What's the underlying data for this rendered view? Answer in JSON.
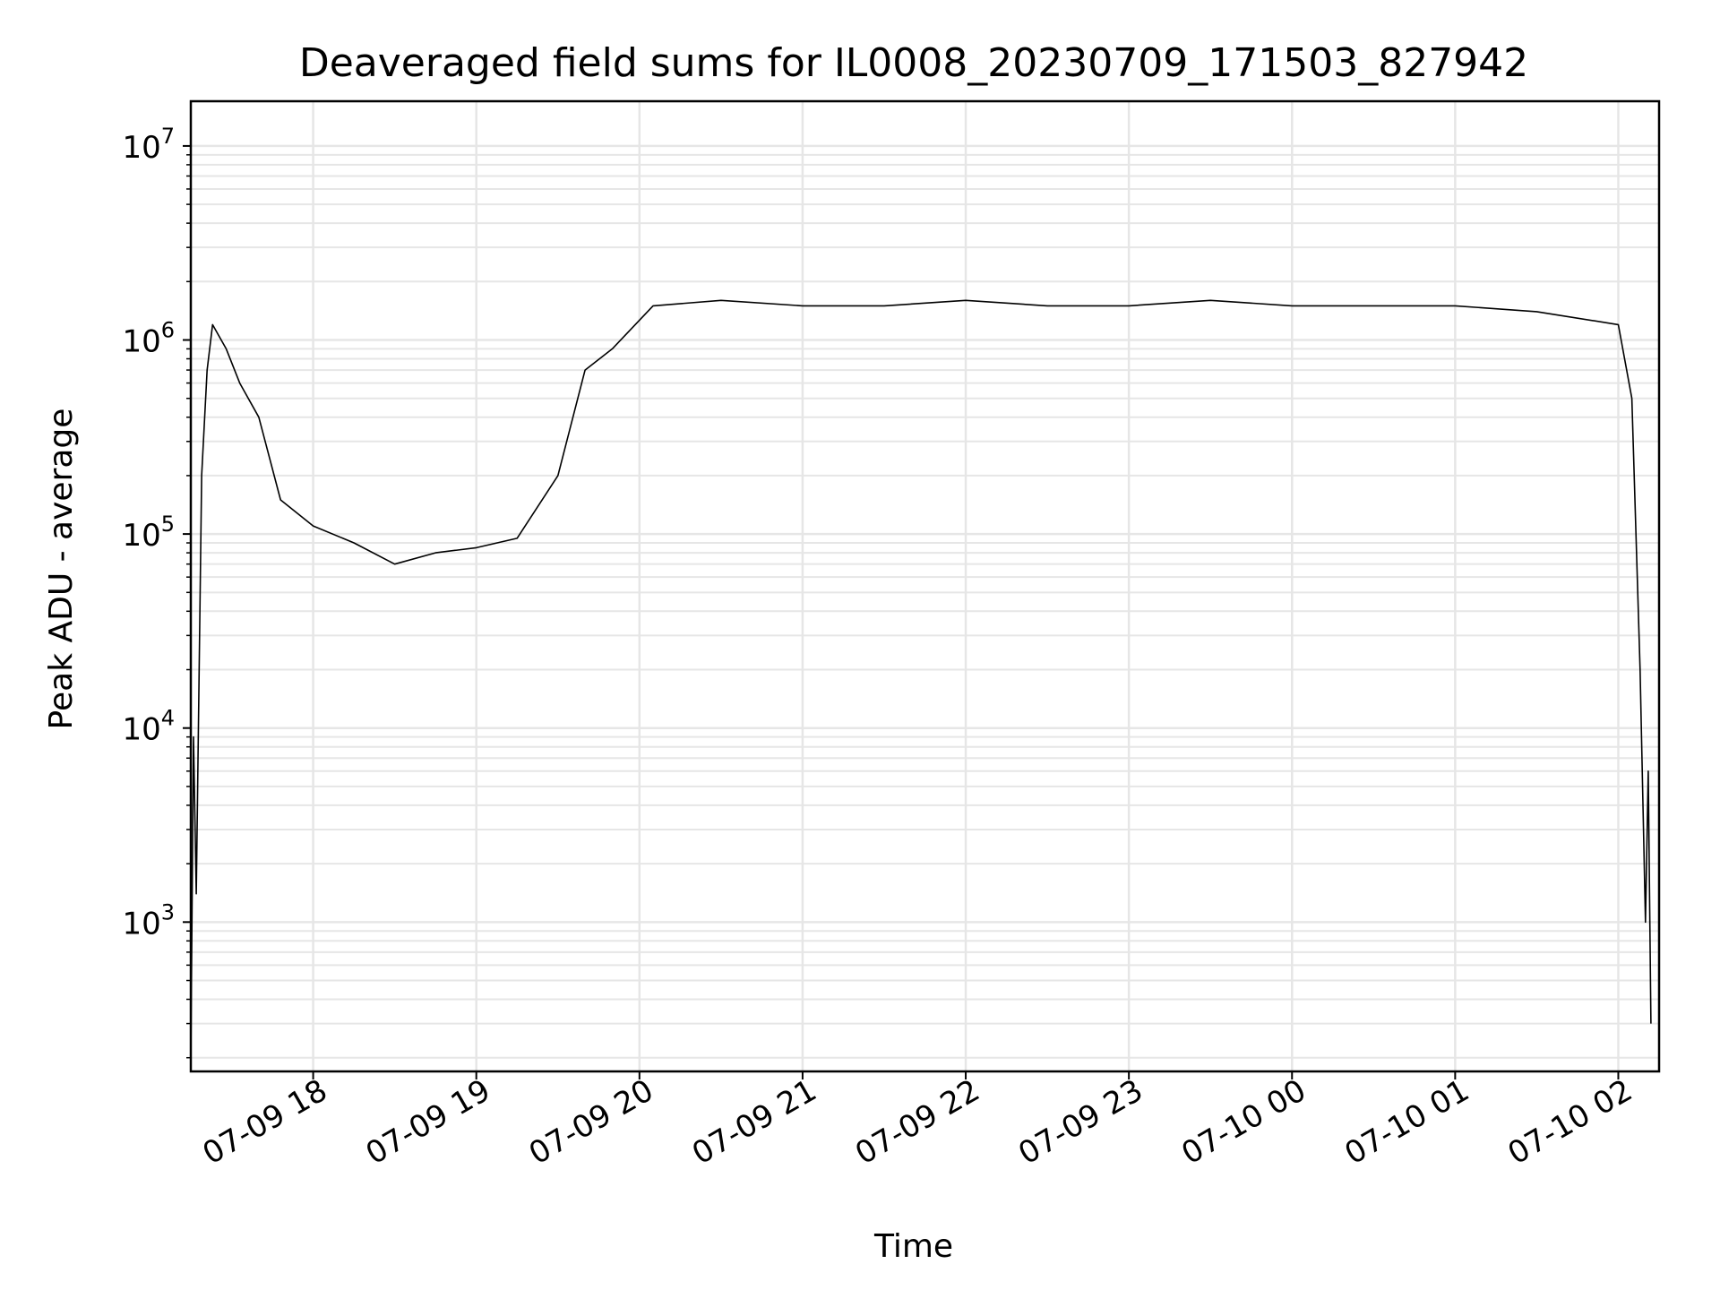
{
  "chart_data": {
    "type": "line",
    "title": "Deaveraged field sums for IL0008_20230709_171503_827942",
    "xlabel": "Time",
    "ylabel": "Peak ADU - average",
    "y_scale": "log",
    "ylim": [
      170,
      17000000
    ],
    "xlim": [
      "2023-07-09 17:15",
      "2023-07-10 02:15"
    ],
    "x_ticks": [
      {
        "t": "2023-07-09 18:00",
        "label": "07-09 18"
      },
      {
        "t": "2023-07-09 19:00",
        "label": "07-09 19"
      },
      {
        "t": "2023-07-09 20:00",
        "label": "07-09 20"
      },
      {
        "t": "2023-07-09 21:00",
        "label": "07-09 21"
      },
      {
        "t": "2023-07-09 22:00",
        "label": "07-09 22"
      },
      {
        "t": "2023-07-09 23:00",
        "label": "07-09 23"
      },
      {
        "t": "2023-07-10 00:00",
        "label": "07-10 00"
      },
      {
        "t": "2023-07-10 01:00",
        "label": "07-10 01"
      },
      {
        "t": "2023-07-10 02:00",
        "label": "07-10 02"
      }
    ],
    "y_ticks": [
      {
        "value": 1000,
        "base": "10",
        "exp": "3"
      },
      {
        "value": 10000,
        "base": "10",
        "exp": "4"
      },
      {
        "value": 100000,
        "base": "10",
        "exp": "5"
      },
      {
        "value": 1000000,
        "base": "10",
        "exp": "6"
      },
      {
        "value": 10000000,
        "base": "10",
        "exp": "7"
      }
    ],
    "grid": true,
    "grid_color": "#e6e6e6",
    "line_color": "#000000",
    "series": [
      {
        "values": [
          [
            "2023-07-09 17:15",
            200
          ],
          [
            "2023-07-09 17:16",
            9000
          ],
          [
            "2023-07-09 17:17",
            1400
          ],
          [
            "2023-07-09 17:19",
            200000
          ],
          [
            "2023-07-09 17:21",
            700000
          ],
          [
            "2023-07-09 17:23",
            1200000
          ],
          [
            "2023-07-09 17:28",
            900000
          ],
          [
            "2023-07-09 17:33",
            600000
          ],
          [
            "2023-07-09 17:40",
            400000
          ],
          [
            "2023-07-09 17:48",
            150000
          ],
          [
            "2023-07-09 18:00",
            110000
          ],
          [
            "2023-07-09 18:15",
            90000
          ],
          [
            "2023-07-09 18:30",
            70000
          ],
          [
            "2023-07-09 18:45",
            80000
          ],
          [
            "2023-07-09 19:00",
            85000
          ],
          [
            "2023-07-09 19:15",
            95000
          ],
          [
            "2023-07-09 19:30",
            200000
          ],
          [
            "2023-07-09 19:40",
            700000
          ],
          [
            "2023-07-09 19:50",
            900000
          ],
          [
            "2023-07-09 20:05",
            1500000
          ],
          [
            "2023-07-09 20:30",
            1600000
          ],
          [
            "2023-07-09 21:00",
            1500000
          ],
          [
            "2023-07-09 21:30",
            1500000
          ],
          [
            "2023-07-09 22:00",
            1600000
          ],
          [
            "2023-07-09 22:30",
            1500000
          ],
          [
            "2023-07-09 23:00",
            1500000
          ],
          [
            "2023-07-09 23:30",
            1600000
          ],
          [
            "2023-07-10 00:00",
            1500000
          ],
          [
            "2023-07-10 00:30",
            1500000
          ],
          [
            "2023-07-10 01:00",
            1500000
          ],
          [
            "2023-07-10 01:30",
            1400000
          ],
          [
            "2023-07-10 02:00",
            1200000
          ],
          [
            "2023-07-10 02:05",
            500000
          ],
          [
            "2023-07-10 02:08",
            20000
          ],
          [
            "2023-07-10 02:10",
            1000
          ],
          [
            "2023-07-10 02:11",
            6000
          ],
          [
            "2023-07-10 02:12",
            300
          ]
        ]
      }
    ]
  }
}
